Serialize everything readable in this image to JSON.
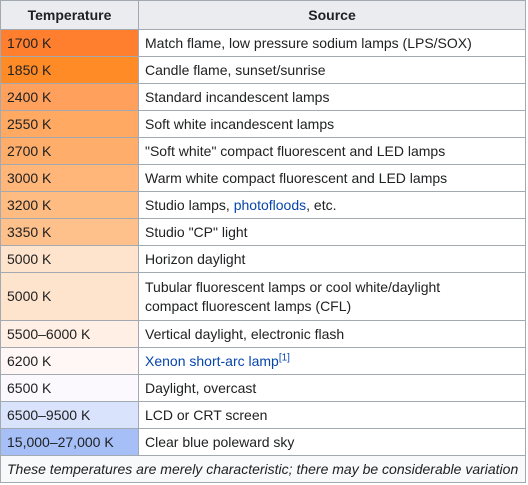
{
  "header": {
    "temperature": "Temperature",
    "source": "Source"
  },
  "rows": [
    {
      "temperature": "1700 K",
      "color": "#ff7f2e",
      "source": "Match flame, low pressure sodium lamps (LPS/SOX)"
    },
    {
      "temperature": "1850 K",
      "color": "#ff8b27",
      "source": "Candle flame, sunset/sunrise"
    },
    {
      "temperature": "2400 K",
      "color": "#ffa05c",
      "source": "Standard incandescent lamps"
    },
    {
      "temperature": "2550 K",
      "color": "#ffa963",
      "source": "Soft white incandescent lamps"
    },
    {
      "temperature": "2700 K",
      "color": "#ffad6b",
      "source": "\"Soft white\" compact fluorescent and LED lamps"
    },
    {
      "temperature": "3000 K",
      "color": "#ffb678",
      "source": "Warm white compact fluorescent and LED lamps"
    },
    {
      "temperature": "3200 K",
      "color": "#ffbc82",
      "source_before": "Studio lamps, ",
      "source_link": "photofloods",
      "source_after": ", etc."
    },
    {
      "temperature": "3350 K",
      "color": "#ffc18b",
      "source": "Studio \"CP\" light"
    },
    {
      "temperature": "5000 K",
      "color": "#ffe4cd",
      "source": "Horizon daylight"
    },
    {
      "temperature": "5000 K",
      "color": "#ffe4cd",
      "source_line1": "Tubular fluorescent lamps or cool white/daylight",
      "source_line2": "compact fluorescent lamps (CFL)"
    },
    {
      "temperature": "5500–6000 K",
      "color": "#ffefe4",
      "source": "Vertical daylight, electronic flash"
    },
    {
      "temperature": "6200 K",
      "color": "#fff7f5",
      "source_link": "Xenon short-arc lamp",
      "source_ref": "[1]"
    },
    {
      "temperature": "6500 K",
      "color": "#fbf9fe",
      "source": "Daylight, overcast"
    },
    {
      "temperature": "6500–9500 K",
      "color": "#d9e3fb",
      "source": "LCD or CRT screen"
    },
    {
      "temperature": "15,000–27,000 K",
      "color": "#a6c0f7",
      "source": "Clear blue poleward sky"
    }
  ],
  "footnote": "These temperatures are merely characteristic; there may be considerable variation"
}
